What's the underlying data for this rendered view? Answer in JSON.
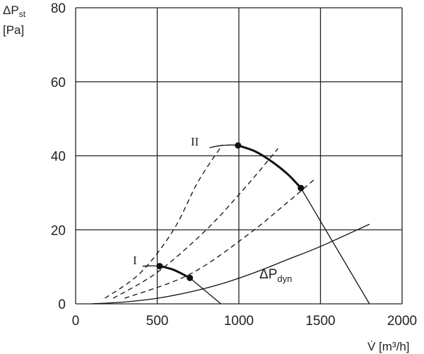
{
  "chart_data": {
    "type": "line",
    "title": "",
    "ylabel_main": "ΔP",
    "ylabel_sub": "st",
    "ylabel_unit": "[Pa]",
    "xlabel": "V̇ [m³/h]",
    "xlim": [
      0,
      2000
    ],
    "ylim": [
      0,
      80
    ],
    "xticks": [
      0,
      500,
      1000,
      1500,
      2000
    ],
    "yticks": [
      0,
      20,
      40,
      60,
      80
    ],
    "grid": true,
    "curve_labels": {
      "I": "I",
      "II": "II",
      "dyn_main": "ΔP",
      "dyn_sub": "dyn"
    },
    "series": [
      {
        "name": "I",
        "style": "thin",
        "points": [
          [
            410,
            10.2
          ],
          [
            515,
            10.2
          ],
          [
            600,
            9.2
          ],
          [
            700,
            7.0
          ]
        ]
      },
      {
        "name": "I",
        "style": "bold",
        "points": [
          [
            515,
            10.2
          ],
          [
            600,
            9.2
          ],
          [
            700,
            7.0
          ]
        ]
      },
      {
        "name": "II",
        "style": "thin",
        "points": [
          [
            820,
            42.2
          ],
          [
            900,
            42.8
          ],
          [
            995,
            42.8
          ],
          [
            1100,
            41.2
          ],
          [
            1200,
            38.5
          ],
          [
            1300,
            35.0
          ],
          [
            1380,
            31.3
          ]
        ]
      },
      {
        "name": "II",
        "style": "bold",
        "points": [
          [
            995,
            42.8
          ],
          [
            1100,
            41.2
          ],
          [
            1200,
            38.5
          ],
          [
            1300,
            35.0
          ],
          [
            1380,
            31.3
          ]
        ]
      },
      {
        "style": "thin",
        "points": [
          [
            700,
            7.0
          ],
          [
            890,
            0
          ]
        ]
      },
      {
        "style": "thin",
        "points": [
          [
            1380,
            31.3
          ],
          [
            1800,
            0
          ]
        ]
      },
      {
        "name": "ΔPdyn",
        "style": "thin",
        "points": [
          [
            100,
            0
          ],
          [
            300,
            0.5
          ],
          [
            500,
            1.5
          ],
          [
            700,
            3.2
          ],
          [
            900,
            5.5
          ],
          [
            1100,
            8.5
          ],
          [
            1300,
            12.0
          ],
          [
            1500,
            15.5
          ],
          [
            1800,
            21.5
          ]
        ]
      },
      {
        "style": "dashed",
        "points": [
          [
            180,
            1.5
          ],
          [
            400,
            8.5
          ],
          [
            600,
            20.0
          ],
          [
            750,
            33.0
          ],
          [
            900,
            43.0
          ]
        ]
      },
      {
        "style": "dashed",
        "points": [
          [
            230,
            1.5
          ],
          [
            500,
            8.5
          ],
          [
            800,
            20.0
          ],
          [
            1050,
            32.0
          ],
          [
            1240,
            42.0
          ]
        ]
      },
      {
        "style": "dashed",
        "points": [
          [
            300,
            1.5
          ],
          [
            700,
            8.0
          ],
          [
            1050,
            18.5
          ],
          [
            1300,
            27.5
          ],
          [
            1460,
            33.5
          ]
        ]
      }
    ],
    "markers": [
      [
        515,
        10.2
      ],
      [
        700,
        7.0
      ],
      [
        995,
        42.8
      ],
      [
        1380,
        31.3
      ]
    ]
  }
}
